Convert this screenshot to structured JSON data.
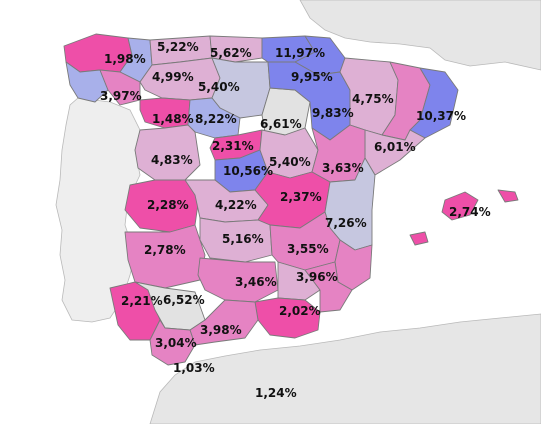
{
  "colors": {
    "sea": "#ffffff",
    "land_neighbor": "#e6e6e6",
    "land_portugal": "#eeeeee",
    "very_low": "#ee4fa8",
    "low": "#e583c3",
    "mid": "#deb0d4",
    "mid_high": "#c6c7e0",
    "high": "#a8b0ea",
    "very_high": "#7e84ec",
    "na": "#e2e2e2"
  },
  "provinces": [
    {
      "name": "A Coruña",
      "value": "1,98%",
      "level": "very_low"
    },
    {
      "name": "Asturias",
      "value": "5,22%",
      "level": "mid"
    },
    {
      "name": "Cantabria",
      "value": "5,62%",
      "level": "mid"
    },
    {
      "name": "Bizkaia",
      "value": "11,97%",
      "level": "very_high"
    },
    {
      "name": "Gipuzkoa",
      "value": "9,95%",
      "level": "very_high"
    },
    {
      "name": "Lugo",
      "value": "",
      "level": "high"
    },
    {
      "name": "León",
      "value": "4,99%",
      "level": "mid"
    },
    {
      "name": "Burgos",
      "value": "5,40%",
      "level": "mid_high"
    },
    {
      "name": "Pontevedra",
      "value": "3,97%",
      "level": "high"
    },
    {
      "name": "Ourense",
      "value": "",
      "level": "low"
    },
    {
      "name": "Huesca",
      "value": "4,75%",
      "level": "mid"
    },
    {
      "name": "Navarra",
      "value": "9,83%",
      "level": "very_high"
    },
    {
      "name": "Girona",
      "value": "10,37%",
      "level": "very_high"
    },
    {
      "name": "Zamora",
      "value": "1,48%",
      "level": "very_low"
    },
    {
      "name": "Valladolid",
      "value": "8,22%",
      "level": "high"
    },
    {
      "name": "Soria",
      "value": "6,61%",
      "level": "na"
    },
    {
      "name": "Salamanca",
      "value": "4,83%",
      "level": "mid"
    },
    {
      "name": "Segovia",
      "value": "2,31%",
      "level": "very_low"
    },
    {
      "name": "Madrid",
      "value": "10,56%",
      "level": "very_high"
    },
    {
      "name": "Guadalajara",
      "value": "5,40%",
      "level": "mid"
    },
    {
      "name": "Teruel",
      "value": "3,63%",
      "level": "low"
    },
    {
      "name": "Tarragona",
      "value": "6,01%",
      "level": "mid"
    },
    {
      "name": "Cáceres",
      "value": "2,28%",
      "level": "very_low"
    },
    {
      "name": "Toledo",
      "value": "4,22%",
      "level": "mid"
    },
    {
      "name": "Cuenca",
      "value": "2,37%",
      "level": "very_low"
    },
    {
      "name": "Valencia",
      "value": "7,26%",
      "level": "mid_high"
    },
    {
      "name": "Baleares",
      "value": "2,74%",
      "level": "very_low"
    },
    {
      "name": "Badajoz",
      "value": "2,78%",
      "level": "low"
    },
    {
      "name": "Ciudad Real",
      "value": "5,16%",
      "level": "mid"
    },
    {
      "name": "Albacete",
      "value": "3,55%",
      "level": "low"
    },
    {
      "name": "Córdoba",
      "value": "3,46%",
      "level": "low"
    },
    {
      "name": "Murcia",
      "value": "3,96%",
      "level": "low"
    },
    {
      "name": "Huelva",
      "value": "2,21%",
      "level": "very_low"
    },
    {
      "name": "Sevilla",
      "value": "6,52%",
      "level": "na"
    },
    {
      "name": "Granada",
      "value": "2,02%",
      "level": "very_low"
    },
    {
      "name": "Málaga",
      "value": "3,98%",
      "level": "low"
    },
    {
      "name": "Cádiz",
      "value": "3,04%",
      "level": "low"
    },
    {
      "name": "Ceuta",
      "value": "1,03%",
      "level": "none"
    },
    {
      "name": "Melilla",
      "value": "1,24%",
      "level": "none"
    }
  ]
}
